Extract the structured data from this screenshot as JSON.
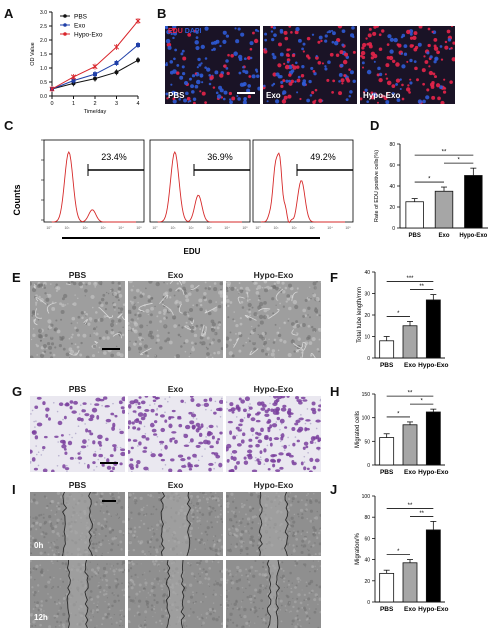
{
  "panels": {
    "A": {
      "letter": "A"
    },
    "B": {
      "letter": "B",
      "channel1": "EDU",
      "channel2": "DAPI",
      "labels": [
        "PBS",
        "Exo",
        "Hypo-Exo"
      ]
    },
    "C": {
      "letter": "C",
      "ylabel": "Counts",
      "xlabel": "EDU"
    },
    "D": {
      "letter": "D"
    },
    "E": {
      "letter": "E",
      "headers": [
        "PBS",
        "Exo",
        "Hypo-Exo"
      ]
    },
    "F": {
      "letter": "F"
    },
    "G": {
      "letter": "G",
      "headers": [
        "PBS",
        "Exo",
        "Hypo-Exo"
      ]
    },
    "H": {
      "letter": "H"
    },
    "I": {
      "letter": "I",
      "headers": [
        "PBS",
        "Exo",
        "Hypo-Exo"
      ],
      "rows": [
        "0h",
        "12h"
      ]
    },
    "J": {
      "letter": "J"
    }
  },
  "colors": {
    "pbs": "#111111",
    "exo": "#1f3fa8",
    "hypo": "#d9252b",
    "bar_pbs": "#ffffff",
    "bar_exo": "#a6a6a6",
    "bar_hypo": "#000000",
    "hist": "#d62a2a",
    "edu": "#e8254a",
    "dapi": "#2f5bd6",
    "crystal": "#7a3f9d"
  },
  "chart_data": [
    {
      "id": "A",
      "type": "line",
      "xlabel": "Time/day",
      "ylabel": "OD Value",
      "x": [
        0,
        1,
        2,
        3,
        4
      ],
      "xticks": [
        "0",
        "1",
        "2",
        "3",
        "4"
      ],
      "ylim": [
        0.0,
        3.0
      ],
      "yticks": [
        "0.0",
        "0.5",
        "1.0",
        "1.5",
        "2.0",
        "2.5",
        "3.0"
      ],
      "series": [
        {
          "name": "PBS",
          "values": [
            0.25,
            0.45,
            0.62,
            0.85,
            1.28
          ]
        },
        {
          "name": "Exo",
          "values": [
            0.25,
            0.55,
            0.78,
            1.18,
            1.82
          ]
        },
        {
          "name": "Hypo-Exo",
          "values": [
            0.25,
            0.68,
            1.05,
            1.75,
            2.68
          ]
        }
      ]
    },
    {
      "id": "C",
      "type": "histogram",
      "ylabel": "Counts",
      "xlabel": "EDU",
      "xticks": [
        "10°",
        "10¹",
        "10²",
        "10³",
        "10⁴",
        "10⁵"
      ],
      "gates": [
        "23.4%",
        "36.9%",
        "49.2%"
      ]
    },
    {
      "id": "D",
      "type": "bar",
      "ylabel": "Rate of EDU positive cells(%)",
      "categories": [
        "PBS",
        "Exo",
        "Hypo-Exo"
      ],
      "values": [
        25,
        35,
        50
      ],
      "errors": [
        3,
        4,
        7
      ],
      "ylim": [
        0,
        80
      ],
      "yticks": [
        "0",
        "20",
        "40",
        "60",
        "80"
      ],
      "significance": [
        "*",
        "*",
        "**"
      ]
    },
    {
      "id": "F",
      "type": "bar",
      "ylabel": "Total tube length/mm",
      "categories": [
        "PBS",
        "Exo",
        "Hypo-Exo"
      ],
      "values": [
        8,
        15,
        27
      ],
      "errors": [
        2,
        2,
        2.5
      ],
      "ylim": [
        0,
        40
      ],
      "yticks": [
        "0",
        "10",
        "20",
        "30",
        "40"
      ],
      "significance": [
        "*",
        "**",
        "***"
      ]
    },
    {
      "id": "H",
      "type": "bar",
      "ylabel": "Migrated cells",
      "categories": [
        "PBS",
        "Exo",
        "Hypo-Exo"
      ],
      "values": [
        58,
        85,
        112
      ],
      "errors": [
        8,
        6,
        6
      ],
      "ylim": [
        0,
        150
      ],
      "yticks": [
        "0",
        "50",
        "100",
        "150"
      ],
      "significance": [
        "*",
        "*",
        "**"
      ]
    },
    {
      "id": "J",
      "type": "bar",
      "ylabel": "Migration/%",
      "categories": [
        "PBS",
        "Exo",
        "Hypo-Exo"
      ],
      "values": [
        27,
        37,
        68
      ],
      "errors": [
        3,
        3,
        8
      ],
      "ylim": [
        0,
        100
      ],
      "yticks": [
        "0",
        "20",
        "40",
        "60",
        "80",
        "100"
      ],
      "significance": [
        "*",
        "**",
        "**"
      ]
    }
  ]
}
